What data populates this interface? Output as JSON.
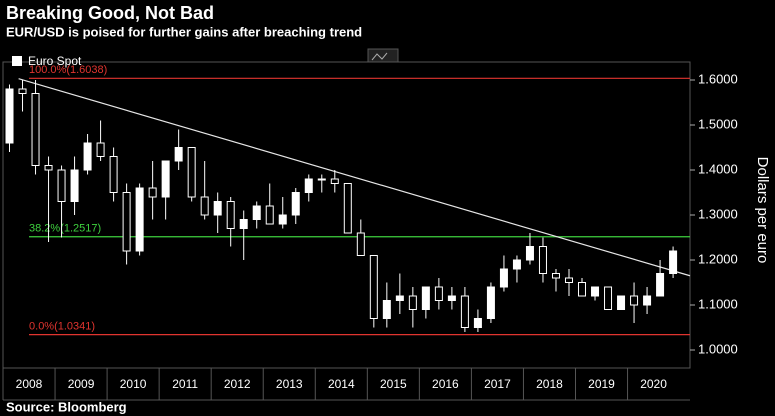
{
  "chart_data": {
    "type": "candlestick",
    "title": "Breaking Good, Not Bad",
    "subtitle": "EUR/USD is poised for further gains after breaching trend",
    "source": "Source: Bloomberg",
    "y_axis_label": "Dollars per euro",
    "legend": "top-left",
    "up_color": "#ffffff",
    "down_color": "#000000",
    "xlim": [
      2008,
      2021.2
    ],
    "xticks": [
      {
        "value": 2008.5,
        "label": "2008"
      },
      {
        "value": 2009.5,
        "label": "2009"
      },
      {
        "value": 2010.5,
        "label": "2010"
      },
      {
        "value": 2011.5,
        "label": "2011"
      },
      {
        "value": 2012.5,
        "label": "2012"
      },
      {
        "value": 2013.5,
        "label": "2013"
      },
      {
        "value": 2014.5,
        "label": "2014"
      },
      {
        "value": 2015.5,
        "label": "2015"
      },
      {
        "value": 2016.5,
        "label": "2016"
      },
      {
        "value": 2017.5,
        "label": "2017"
      },
      {
        "value": 2018.5,
        "label": "2018"
      },
      {
        "value": 2019.5,
        "label": "2019"
      },
      {
        "value": 2020.5,
        "label": "2020"
      }
    ],
    "ylim": [
      0.96,
      1.64
    ],
    "yticks": [
      {
        "value": 1.0,
        "label": "1.0000"
      },
      {
        "value": 1.1,
        "label": "1.1000"
      },
      {
        "value": 1.2,
        "label": "1.2000"
      },
      {
        "value": 1.3,
        "label": "1.3000"
      },
      {
        "value": 1.4,
        "label": "1.4000"
      },
      {
        "value": 1.5,
        "label": "1.5000"
      },
      {
        "value": 1.6,
        "label": "1.6000"
      }
    ],
    "x": [
      2008.125,
      2008.375,
      2008.625,
      2008.875,
      2009.125,
      2009.375,
      2009.625,
      2009.875,
      2010.125,
      2010.375,
      2010.625,
      2010.875,
      2011.125,
      2011.375,
      2011.625,
      2011.875,
      2012.125,
      2012.375,
      2012.625,
      2012.875,
      2013.125,
      2013.375,
      2013.625,
      2013.875,
      2014.125,
      2014.375,
      2014.625,
      2014.875,
      2015.125,
      2015.375,
      2015.625,
      2015.875,
      2016.125,
      2016.375,
      2016.625,
      2016.875,
      2017.125,
      2017.375,
      2017.625,
      2017.875,
      2018.125,
      2018.375,
      2018.625,
      2018.875,
      2019.125,
      2019.375,
      2019.625,
      2019.875,
      2020.125,
      2020.375,
      2020.625,
      2020.875
    ],
    "series": [
      {
        "name": "Euro Spot",
        "open": [
          1.46,
          1.58,
          1.57,
          1.41,
          1.4,
          1.33,
          1.4,
          1.46,
          1.43,
          1.35,
          1.22,
          1.36,
          1.34,
          1.42,
          1.45,
          1.34,
          1.3,
          1.33,
          1.27,
          1.29,
          1.32,
          1.28,
          1.3,
          1.35,
          1.38,
          1.38,
          1.37,
          1.26,
          1.21,
          1.07,
          1.11,
          1.12,
          1.09,
          1.14,
          1.11,
          1.12,
          1.05,
          1.07,
          1.14,
          1.18,
          1.2,
          1.23,
          1.17,
          1.16,
          1.15,
          1.12,
          1.14,
          1.09,
          1.12,
          1.1,
          1.12,
          1.17
        ],
        "high": [
          1.59,
          1.6,
          1.6,
          1.43,
          1.41,
          1.43,
          1.48,
          1.51,
          1.45,
          1.37,
          1.37,
          1.42,
          1.42,
          1.49,
          1.45,
          1.42,
          1.35,
          1.34,
          1.31,
          1.33,
          1.37,
          1.34,
          1.36,
          1.39,
          1.39,
          1.4,
          1.37,
          1.29,
          1.21,
          1.15,
          1.17,
          1.14,
          1.14,
          1.16,
          1.14,
          1.14,
          1.09,
          1.15,
          1.21,
          1.21,
          1.26,
          1.25,
          1.18,
          1.18,
          1.16,
          1.14,
          1.14,
          1.12,
          1.15,
          1.14,
          1.2,
          1.23
        ],
        "low": [
          1.44,
          1.53,
          1.39,
          1.24,
          1.25,
          1.3,
          1.39,
          1.42,
          1.33,
          1.19,
          1.21,
          1.29,
          1.29,
          1.4,
          1.33,
          1.29,
          1.26,
          1.23,
          1.2,
          1.27,
          1.28,
          1.27,
          1.28,
          1.33,
          1.35,
          1.35,
          1.26,
          1.21,
          1.05,
          1.05,
          1.08,
          1.05,
          1.07,
          1.09,
          1.09,
          1.04,
          1.04,
          1.06,
          1.13,
          1.15,
          1.19,
          1.15,
          1.13,
          1.12,
          1.12,
          1.11,
          1.09,
          1.09,
          1.06,
          1.08,
          1.12,
          1.16
        ],
        "close": [
          1.58,
          1.57,
          1.41,
          1.4,
          1.33,
          1.4,
          1.46,
          1.43,
          1.35,
          1.22,
          1.36,
          1.34,
          1.42,
          1.45,
          1.34,
          1.3,
          1.33,
          1.27,
          1.29,
          1.32,
          1.28,
          1.3,
          1.35,
          1.38,
          1.38,
          1.37,
          1.26,
          1.21,
          1.07,
          1.11,
          1.12,
          1.09,
          1.14,
          1.11,
          1.12,
          1.05,
          1.07,
          1.14,
          1.18,
          1.2,
          1.23,
          1.17,
          1.16,
          1.15,
          1.12,
          1.14,
          1.09,
          1.12,
          1.1,
          1.12,
          1.17,
          1.22
        ]
      }
    ],
    "hlines": [
      {
        "value": 1.6038,
        "label": "100.0%(1.6038)",
        "color": "#e0342f"
      },
      {
        "value": 1.2517,
        "label": "38.2%(1.2517)",
        "color": "#3ed13e"
      },
      {
        "value": 1.0341,
        "label": "0.0%(1.0341)",
        "color": "#e0342f"
      }
    ],
    "trendline": {
      "x": [
        2008.3,
        2021.2
      ],
      "y": [
        1.603,
        1.165
      ],
      "color": "#e6e6e6"
    }
  }
}
